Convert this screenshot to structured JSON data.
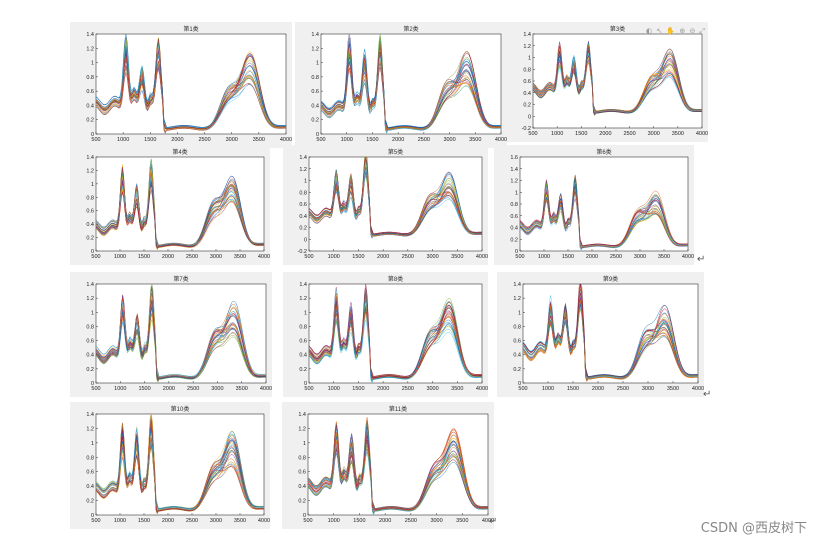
{
  "figure_toolbar": "◐ ↖ ✋ ⊕ ⊖ ⤢",
  "return_marks": [
    "↵",
    "↵",
    "↵"
  ],
  "watermark": "CSDN @西皮树下",
  "series_colors": [
    "#0072bd",
    "#d95319",
    "#edb120",
    "#7e2f8e",
    "#77ac30",
    "#4dbeee",
    "#a2142f"
  ],
  "chart_data": [
    {
      "type": "line",
      "title": "第1类",
      "xlim": [
        500,
        4000
      ],
      "ylim": [
        0,
        1.4
      ],
      "xticks": [
        "500",
        "1000",
        "1500",
        "2000",
        "2500",
        "3000",
        "3500",
        "4000"
      ],
      "yticks": [
        "0",
        "0.2",
        "0.4",
        "0.6",
        "0.8",
        "1",
        "1.2",
        "1.4"
      ],
      "peaks": [
        {
          "x": 1050,
          "y": 1.1
        },
        {
          "x": 1350,
          "y": 0.7
        },
        {
          "x": 1650,
          "y": 1.0
        },
        {
          "x": 2950,
          "y": 0.55
        },
        {
          "x": 3350,
          "y": 0.95
        }
      ],
      "baseline": 0.4,
      "curves": 30
    },
    {
      "type": "line",
      "title": "第2类",
      "xlim": [
        500,
        4000
      ],
      "ylim": [
        0,
        1.4
      ],
      "xticks": [
        "500",
        "1000",
        "1500",
        "2000",
        "2500",
        "3000",
        "3500",
        "4000"
      ],
      "yticks": [
        "0",
        "0.2",
        "0.4",
        "0.6",
        "0.8",
        "1",
        "1.2",
        "1.4"
      ],
      "peaks": [
        {
          "x": 1050,
          "y": 1.15
        },
        {
          "x": 1350,
          "y": 0.9
        },
        {
          "x": 1650,
          "y": 1.05
        },
        {
          "x": 2950,
          "y": 0.6
        },
        {
          "x": 3350,
          "y": 0.95
        }
      ],
      "baseline": 0.35,
      "curves": 30
    },
    {
      "type": "line",
      "title": "第3类",
      "xlim": [
        500,
        4000
      ],
      "ylim": [
        -0.2,
        1.4
      ],
      "xticks": [
        "500",
        "1000",
        "1500",
        "2000",
        "2500",
        "3000",
        "3500",
        "4000"
      ],
      "yticks": [
        "-0.2",
        "0",
        "0.2",
        "0.4",
        "0.6",
        "0.8",
        "1",
        "1.2",
        "1.4"
      ],
      "peaks": [
        {
          "x": 1050,
          "y": 1.0
        },
        {
          "x": 1350,
          "y": 0.75
        },
        {
          "x": 1650,
          "y": 0.9
        },
        {
          "x": 2950,
          "y": 0.55
        },
        {
          "x": 3350,
          "y": 0.95
        }
      ],
      "baseline": 0.45,
      "curves": 30
    },
    {
      "type": "line",
      "title": "第4类",
      "xlim": [
        500,
        4000
      ],
      "ylim": [
        0,
        1.4
      ],
      "xticks": [
        "500",
        "1000",
        "1500",
        "2000",
        "2500",
        "3000",
        "3500",
        "4000"
      ],
      "yticks": [
        "0",
        "0.2",
        "0.4",
        "0.6",
        "0.8",
        "1",
        "1.2",
        "1.4"
      ],
      "peaks": [
        {
          "x": 1050,
          "y": 1.05
        },
        {
          "x": 1350,
          "y": 0.8
        },
        {
          "x": 1650,
          "y": 1.0
        },
        {
          "x": 2950,
          "y": 0.6
        },
        {
          "x": 3350,
          "y": 0.95
        }
      ],
      "baseline": 0.35,
      "curves": 30
    },
    {
      "type": "line",
      "title": "第5类",
      "xlim": [
        500,
        4000
      ],
      "ylim": [
        -0.2,
        1.4
      ],
      "xticks": [
        "500",
        "1000",
        "1500",
        "2000",
        "2500",
        "3000",
        "3500",
        "4000"
      ],
      "yticks": [
        "-0.2",
        "0",
        "0.2",
        "0.4",
        "0.6",
        "0.8",
        "1",
        "1.2",
        "1.4"
      ],
      "peaks": [
        {
          "x": 1050,
          "y": 0.95
        },
        {
          "x": 1350,
          "y": 0.85
        },
        {
          "x": 1650,
          "y": 1.2
        },
        {
          "x": 2950,
          "y": 0.6
        },
        {
          "x": 3350,
          "y": 0.95
        }
      ],
      "baseline": 0.4,
      "curves": 30
    },
    {
      "type": "line",
      "title": "第6类",
      "xlim": [
        500,
        4000
      ],
      "ylim": [
        0,
        1.6
      ],
      "xticks": [
        "500",
        "1000",
        "1500",
        "2000",
        "2500",
        "3000",
        "3500",
        "4000"
      ],
      "yticks": [
        "0",
        "0.2",
        "0.4",
        "0.6",
        "0.8",
        "1",
        "1.2",
        "1.4",
        "1.6"
      ],
      "peaks": [
        {
          "x": 1050,
          "y": 1.0
        },
        {
          "x": 1350,
          "y": 0.75
        },
        {
          "x": 1650,
          "y": 0.95
        },
        {
          "x": 2950,
          "y": 0.55
        },
        {
          "x": 3350,
          "y": 0.85
        }
      ],
      "baseline": 0.4,
      "curves": 30
    },
    {
      "type": "line",
      "title": "第7类",
      "xlim": [
        500,
        4000
      ],
      "ylim": [
        0,
        1.4
      ],
      "xticks": [
        "500",
        "1000",
        "1500",
        "2000",
        "2500",
        "3000",
        "3500",
        "4000"
      ],
      "yticks": [
        "0",
        "0.2",
        "0.4",
        "0.6",
        "0.8",
        "1",
        "1.2",
        "1.4"
      ],
      "peaks": [
        {
          "x": 1050,
          "y": 1.0
        },
        {
          "x": 1350,
          "y": 0.75
        },
        {
          "x": 1650,
          "y": 1.05
        },
        {
          "x": 2950,
          "y": 0.6
        },
        {
          "x": 3350,
          "y": 0.95
        }
      ],
      "baseline": 0.4,
      "curves": 30
    },
    {
      "type": "line",
      "title": "第8类",
      "xlim": [
        500,
        4000
      ],
      "ylim": [
        0,
        1.4
      ],
      "xticks": [
        "500",
        "1000",
        "1500",
        "2000",
        "2500",
        "3000",
        "3500",
        "4000"
      ],
      "yticks": [
        "0",
        "0.2",
        "0.4",
        "0.6",
        "0.8",
        "1",
        "1.2",
        "1.4"
      ],
      "peaks": [
        {
          "x": 1050,
          "y": 1.1
        },
        {
          "x": 1350,
          "y": 0.85
        },
        {
          "x": 1650,
          "y": 1.05
        },
        {
          "x": 2950,
          "y": 0.6
        },
        {
          "x": 3350,
          "y": 1.0
        }
      ],
      "baseline": 0.4,
      "curves": 30
    },
    {
      "type": "line",
      "title": "第9类",
      "xlim": [
        500,
        4000
      ],
      "ylim": [
        0,
        1.4
      ],
      "xticks": [
        "500",
        "1000",
        "1500",
        "2000",
        "2500",
        "3000",
        "3500",
        "4000"
      ],
      "yticks": [
        "0",
        "0.2",
        "0.4",
        "0.6",
        "0.8",
        "1",
        "1.2",
        "1.4"
      ],
      "peaks": [
        {
          "x": 1050,
          "y": 0.95
        },
        {
          "x": 1350,
          "y": 0.9
        },
        {
          "x": 1650,
          "y": 1.1
        },
        {
          "x": 2950,
          "y": 0.6
        },
        {
          "x": 3350,
          "y": 0.9
        }
      ],
      "baseline": 0.45,
      "curves": 30
    },
    {
      "type": "line",
      "title": "第10类",
      "xlim": [
        500,
        4000
      ],
      "ylim": [
        0,
        1.4
      ],
      "xticks": [
        "500",
        "1000",
        "1500",
        "2000",
        "2500",
        "3000",
        "3500",
        "4000"
      ],
      "yticks": [
        "0",
        "0.2",
        "0.4",
        "0.6",
        "0.8",
        "1",
        "1.2",
        "1.4"
      ],
      "peaks": [
        {
          "x": 1050,
          "y": 1.05
        },
        {
          "x": 1350,
          "y": 0.95
        },
        {
          "x": 1650,
          "y": 1.1
        },
        {
          "x": 2950,
          "y": 0.55
        },
        {
          "x": 3350,
          "y": 0.95
        }
      ],
      "baseline": 0.35,
      "curves": 30
    },
    {
      "type": "line",
      "title": "第11类",
      "xlim": [
        500,
        4000
      ],
      "ylim": [
        0,
        1.4
      ],
      "xticks": [
        "500",
        "1000",
        "1500",
        "2000",
        "2500",
        "3000",
        "3500",
        "4000"
      ],
      "yticks": [
        "0",
        "0.2",
        "0.4",
        "0.6",
        "0.8",
        "1",
        "1.2",
        "1.4"
      ],
      "peaks": [
        {
          "x": 1050,
          "y": 1.0
        },
        {
          "x": 1350,
          "y": 0.85
        },
        {
          "x": 1650,
          "y": 1.0
        },
        {
          "x": 2950,
          "y": 0.55
        },
        {
          "x": 3350,
          "y": 1.0
        }
      ],
      "baseline": 0.4,
      "curves": 30
    }
  ]
}
